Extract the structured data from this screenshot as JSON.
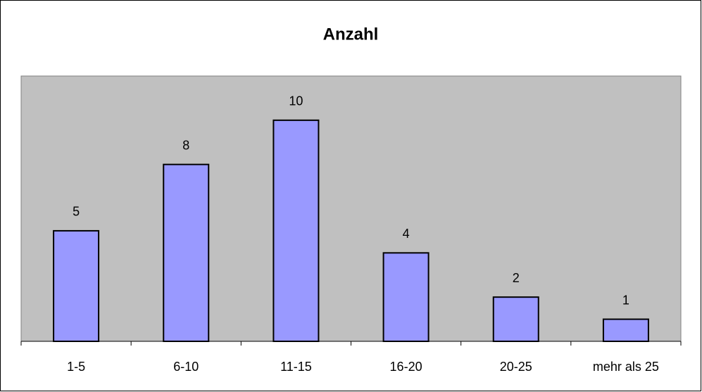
{
  "chart_data": {
    "type": "bar",
    "title": "Anzahl",
    "categories": [
      "1-5",
      "6-10",
      "11-15",
      "16-20",
      "20-25",
      "mehr als 25"
    ],
    "values": [
      5,
      8,
      10,
      4,
      2,
      1
    ],
    "color": "#9999ff",
    "ylim": [
      0,
      12
    ]
  }
}
